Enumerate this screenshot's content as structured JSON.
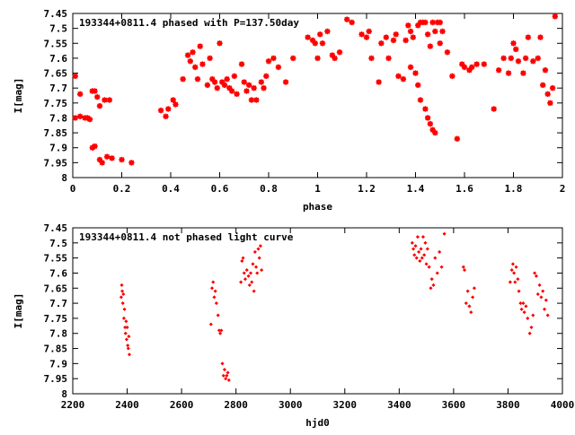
{
  "chart_data": [
    {
      "type": "scatter",
      "title": "193344+0811.4 phased with P=137.50day",
      "xlabel": "phase",
      "ylabel": "I[mag]",
      "xlim": [
        0,
        2
      ],
      "ylim": [
        8,
        7.45
      ],
      "y_inverted": true,
      "x_ticks": [
        "0",
        "0.2",
        "0.4",
        "0.6",
        "0.8",
        "1",
        "1.2",
        "1.4",
        "1.6",
        "1.8",
        "2"
      ],
      "x_tick_values": [
        0,
        0.2,
        0.4,
        0.6,
        0.8,
        1,
        1.2,
        1.4,
        1.6,
        1.8,
        2
      ],
      "y_ticks": [
        "7.45",
        "7.5",
        "7.55",
        "7.6",
        "7.65",
        "7.7",
        "7.75",
        "7.8",
        "7.85",
        "7.9",
        "7.95",
        "8"
      ],
      "y_tick_values": [
        7.45,
        7.5,
        7.55,
        7.6,
        7.65,
        7.7,
        7.75,
        7.8,
        7.85,
        7.9,
        7.95,
        8
      ],
      "marker_color": "#ff0000",
      "series": [
        {
          "x": [
            0.01,
            0.01,
            0.03,
            0.03,
            0.05,
            0.06,
            0.07,
            0.08,
            0.08,
            0.09,
            0.09,
            0.1,
            0.11,
            0.11,
            0.12,
            0.13,
            0.14,
            0.15,
            0.16,
            0.2,
            0.24,
            0.36,
            0.38,
            0.39,
            0.41,
            0.42,
            0.45,
            0.47,
            0.48,
            0.49,
            0.5,
            0.51,
            0.52,
            0.53,
            0.55,
            0.56,
            0.57,
            0.58,
            0.59,
            0.6,
            0.61,
            0.62,
            0.63,
            0.64,
            0.65,
            0.66,
            0.67,
            0.69,
            0.7,
            0.71,
            0.72,
            0.73,
            0.74,
            0.75,
            0.77,
            0.78,
            0.79,
            0.8,
            0.82,
            0.84,
            0.87,
            0.9,
            0.96,
            0.98,
            0.99,
            1.0,
            1.01,
            1.02,
            1.04,
            1.06,
            1.07,
            1.09,
            1.12,
            1.14,
            1.18,
            1.2,
            1.21,
            1.22,
            1.25,
            1.26,
            1.28,
            1.29,
            1.31,
            1.32,
            1.33,
            1.35,
            1.36,
            1.37,
            1.38,
            1.39,
            1.41,
            1.42,
            1.43,
            1.44,
            1.45,
            1.46,
            1.47,
            1.48,
            1.49,
            1.5,
            1.5,
            1.51,
            1.38,
            1.4,
            1.41,
            1.42,
            1.44,
            1.45,
            1.46,
            1.47,
            1.48,
            1.53,
            1.55,
            1.57,
            1.59,
            1.6,
            1.62,
            1.63,
            1.65,
            1.68,
            1.72,
            1.74,
            1.76,
            1.78,
            1.79,
            1.8,
            1.81,
            1.82,
            1.84,
            1.85,
            1.86,
            1.88,
            1.9,
            1.91,
            1.92,
            1.93,
            1.94,
            1.95,
            1.96,
            1.97
          ],
          "y": [
            7.66,
            7.8,
            7.72,
            7.795,
            7.8,
            7.8,
            7.805,
            7.71,
            7.9,
            7.71,
            7.895,
            7.73,
            7.94,
            7.76,
            7.95,
            7.74,
            7.93,
            7.74,
            7.935,
            7.94,
            7.95,
            7.775,
            7.795,
            7.77,
            7.74,
            7.755,
            7.67,
            7.59,
            7.61,
            7.58,
            7.63,
            7.67,
            7.56,
            7.62,
            7.69,
            7.6,
            7.67,
            7.68,
            7.7,
            7.55,
            7.68,
            7.69,
            7.67,
            7.7,
            7.71,
            7.66,
            7.72,
            7.62,
            7.68,
            7.71,
            7.69,
            7.74,
            7.7,
            7.74,
            7.68,
            7.7,
            7.66,
            7.61,
            7.6,
            7.63,
            7.68,
            7.6,
            7.53,
            7.54,
            7.55,
            7.6,
            7.52,
            7.55,
            7.51,
            7.59,
            7.6,
            7.58,
            7.47,
            7.48,
            7.52,
            7.53,
            7.51,
            7.6,
            7.68,
            7.55,
            7.53,
            7.6,
            7.54,
            7.52,
            7.66,
            7.67,
            7.54,
            7.49,
            7.51,
            7.53,
            7.49,
            7.48,
            7.48,
            7.48,
            7.52,
            7.56,
            7.48,
            7.51,
            7.48,
            7.55,
            7.48,
            7.51,
            7.63,
            7.65,
            7.69,
            7.74,
            7.77,
            7.8,
            7.82,
            7.84,
            7.85,
            7.58,
            7.66,
            7.87,
            7.62,
            7.63,
            7.64,
            7.63,
            7.62,
            7.62,
            7.77,
            7.64,
            7.6,
            7.65,
            7.6,
            7.55,
            7.57,
            7.61,
            7.65,
            7.6,
            7.53,
            7.61,
            7.6,
            7.53,
            7.69,
            7.64,
            7.72,
            7.75,
            7.7,
            7.46
          ]
        }
      ]
    },
    {
      "type": "scatter",
      "title": "193344+0811.4 not phased light curve",
      "xlabel": "hjd0",
      "ylabel": "I[mag]",
      "xlim": [
        2200,
        4000
      ],
      "ylim": [
        8,
        7.45
      ],
      "y_inverted": true,
      "x_ticks": [
        "2200",
        "2400",
        "2600",
        "2800",
        "3000",
        "3200",
        "3400",
        "3600",
        "3800",
        "4000"
      ],
      "x_tick_values": [
        2200,
        2400,
        2600,
        2800,
        3000,
        3200,
        3400,
        3600,
        3800,
        4000
      ],
      "y_ticks": [
        "7.45",
        "7.5",
        "7.55",
        "7.6",
        "7.65",
        "7.7",
        "7.75",
        "7.8",
        "7.85",
        "7.9",
        "7.95",
        "8"
      ],
      "y_tick_values": [
        7.45,
        7.5,
        7.55,
        7.6,
        7.65,
        7.7,
        7.75,
        7.8,
        7.85,
        7.9,
        7.95,
        8
      ],
      "marker_color": "#ff0000",
      "series": [
        {
          "x": [
            2378,
            2380,
            2382,
            2384,
            2386,
            2388,
            2390,
            2392,
            2394,
            2396,
            2398,
            2400,
            2402,
            2404,
            2406,
            2408,
            2708,
            2712,
            2716,
            2720,
            2724,
            2728,
            2734,
            2738,
            2742,
            2746,
            2750,
            2754,
            2758,
            2762,
            2766,
            2770,
            2774,
            2818,
            2822,
            2826,
            2830,
            2834,
            2840,
            2846,
            2850,
            2854,
            2858,
            2862,
            2866,
            2870,
            2874,
            2878,
            2882,
            2886,
            2890,
            2894,
            3448,
            3452,
            3456,
            3460,
            3464,
            3468,
            3472,
            3476,
            3480,
            3484,
            3488,
            3492,
            3496,
            3500,
            3504,
            3510,
            3516,
            3520,
            3526,
            3532,
            3540,
            3548,
            3556,
            3566,
            3636,
            3640,
            3646,
            3652,
            3658,
            3664,
            3670,
            3676,
            3808,
            3814,
            3818,
            3822,
            3826,
            3830,
            3836,
            3840,
            3846,
            3850,
            3856,
            3860,
            3866,
            3872,
            3880,
            3886,
            3892,
            3898,
            3904,
            3910,
            3916,
            3922,
            3928,
            3934,
            3940,
            3946
          ],
          "y": [
            7.68,
            7.64,
            7.66,
            7.7,
            7.67,
            7.75,
            7.72,
            7.78,
            7.8,
            7.76,
            7.82,
            7.78,
            7.84,
            7.85,
            7.81,
            7.87,
            7.77,
            7.65,
            7.63,
            7.68,
            7.66,
            7.7,
            7.74,
            7.79,
            7.8,
            7.79,
            7.9,
            7.94,
            7.92,
            7.95,
            7.94,
            7.93,
            7.955,
            7.63,
            7.56,
            7.55,
            7.6,
            7.62,
            7.59,
            7.61,
            7.64,
            7.6,
            7.63,
            7.57,
            7.66,
            7.53,
            7.58,
            7.6,
            7.52,
            7.55,
            7.51,
            7.59,
            7.5,
            7.52,
            7.54,
            7.51,
            7.55,
            7.48,
            7.53,
            7.56,
            7.52,
            7.55,
            7.48,
            7.54,
            7.5,
            7.57,
            7.52,
            7.58,
            7.65,
            7.62,
            7.64,
            7.55,
            7.6,
            7.53,
            7.58,
            7.47,
            7.58,
            7.59,
            7.7,
            7.66,
            7.71,
            7.73,
            7.68,
            7.65,
            7.63,
            7.59,
            7.57,
            7.6,
            7.63,
            7.58,
            7.62,
            7.66,
            7.7,
            7.72,
            7.7,
            7.73,
            7.71,
            7.75,
            7.8,
            7.78,
            7.74,
            7.6,
            7.61,
            7.67,
            7.64,
            7.68,
            7.66,
            7.72,
            7.69,
            7.74
          ]
        }
      ]
    }
  ]
}
